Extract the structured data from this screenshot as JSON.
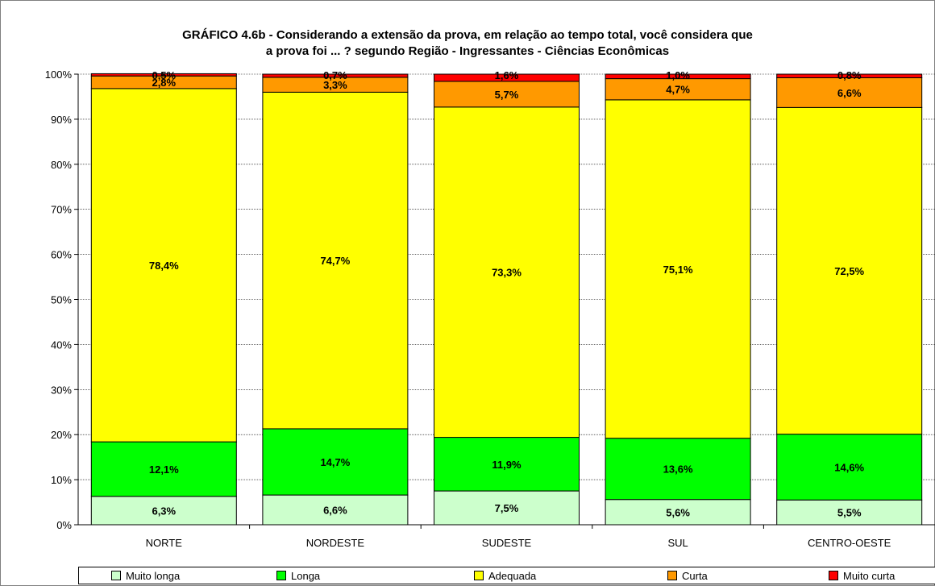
{
  "chart_data": {
    "type": "bar",
    "stacked": true,
    "title_line1": "GRÁFICO 4.6b - Considerando a extensão da prova, em relação ao tempo total, você considera que",
    "title_line2": "a prova foi ... ? segundo Região  - Ingressantes - Ciências Econômicas",
    "categories": [
      "NORTE",
      "NORDESTE",
      "SUDESTE",
      "SUL",
      "CENTRO-OESTE"
    ],
    "yticks": [
      "0%",
      "10%",
      "20%",
      "30%",
      "40%",
      "50%",
      "60%",
      "70%",
      "80%",
      "90%",
      "100%"
    ],
    "ylim": [
      0,
      100
    ],
    "grid": true,
    "legend_position": "bottom",
    "series": [
      {
        "name": "Muito longa",
        "color": "#ccffcc",
        "values": [
          6.3,
          6.6,
          7.5,
          5.6,
          5.5
        ],
        "labels": [
          "6,3%",
          "6,6%",
          "7,5%",
          "5,6%",
          "5,5%"
        ]
      },
      {
        "name": "Longa",
        "color": "#00ff00",
        "values": [
          12.1,
          14.7,
          11.9,
          13.6,
          14.6
        ],
        "labels": [
          "12,1%",
          "14,7%",
          "11,9%",
          "13,6%",
          "14,6%"
        ]
      },
      {
        "name": "Adequada",
        "color": "#ffff00",
        "values": [
          78.4,
          74.7,
          73.3,
          75.1,
          72.5
        ],
        "labels": [
          "78,4%",
          "74,7%",
          "73,3%",
          "75,1%",
          "72,5%"
        ]
      },
      {
        "name": "Curta",
        "color": "#ff9900",
        "values": [
          2.8,
          3.3,
          5.7,
          4.7,
          6.6
        ],
        "labels": [
          "2,8%",
          "3,3%",
          "5,7%",
          "4,7%",
          "6,6%"
        ]
      },
      {
        "name": "Muito curta",
        "color": "#ff0000",
        "values": [
          0.5,
          0.7,
          1.6,
          1.0,
          0.8
        ],
        "labels": [
          "0,5%",
          "0,7%",
          "1,6%",
          "1,0%",
          "0,8%"
        ]
      }
    ]
  }
}
